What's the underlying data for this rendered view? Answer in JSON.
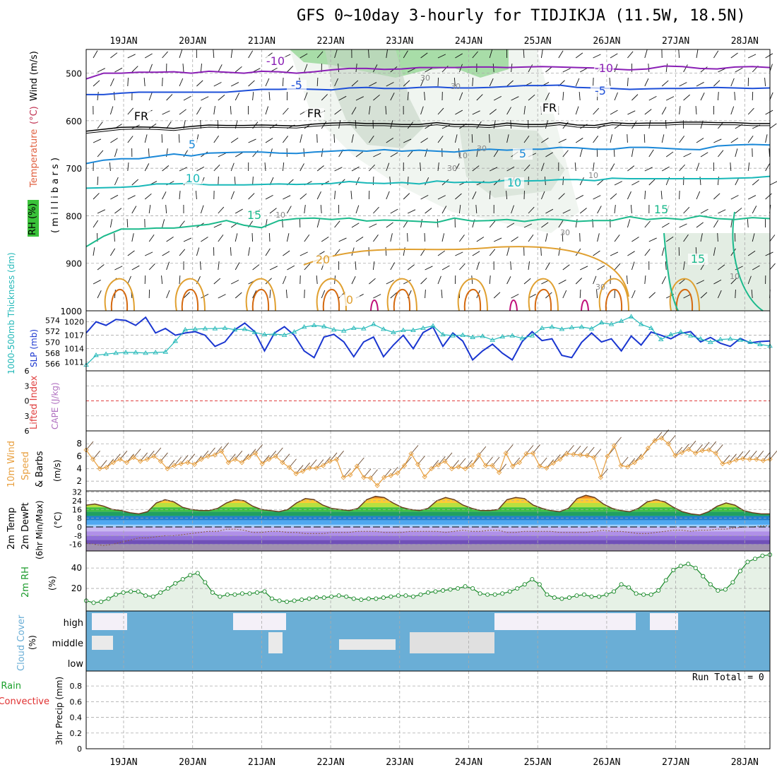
{
  "title": "GFS 0~10day 3-hourly for TIDJIKJA (11.5W, 18.5N)",
  "run_total_label": "Run Total = 0",
  "colors": {
    "purple": "#8a1fb5",
    "blue": "#1e4fd8",
    "lightblue": "#1a88d8",
    "cyan": "#18b8b8",
    "teal": "#1cba8c",
    "orange": "#e0a030",
    "darkorange": "#d56a10",
    "magenta": "#c0107a",
    "slp": "#1a36d0",
    "thickness": "#22b8b8",
    "wind10": "#e8a040",
    "cloud": "#6aaed6",
    "rh": "#1a9a2a",
    "grid": "#aaaaaa"
  },
  "chart_data": [
    {
      "panel": "upper-air",
      "type": "contour",
      "ylabel_parts": [
        "RH (%)",
        "Temperature (°C)",
        "Wind (m/s)"
      ],
      "ylabel_sub": "( m i l l i b a r s )",
      "x": [
        "19JAN",
        "20JAN",
        "21JAN",
        "22JAN",
        "23JAN",
        "24JAN",
        "25JAN",
        "26JAN",
        "27JAN",
        "28JAN"
      ],
      "yticks": [
        "500",
        "600",
        "700",
        "800",
        "900",
        "1000"
      ],
      "contour_labels": [
        "-10",
        "-10",
        "-5",
        "-5",
        "FR",
        "FR",
        "FR",
        "5",
        "5",
        "10",
        "10",
        "15",
        "15",
        "15",
        "20",
        "0"
      ],
      "rh_labels": [
        "30",
        "30",
        "10",
        "10",
        "10",
        "30",
        "30",
        "10",
        "30",
        "10"
      ],
      "series": [
        {
          "name": "-10",
          "level_mb": [
            512,
            500,
            500,
            498,
            498,
            497,
            500,
            496,
            498,
            500,
            496,
            497,
            500,
            497,
            493,
            490,
            490,
            492,
            491,
            488,
            488,
            488,
            487,
            487,
            488,
            487,
            486,
            487,
            488,
            489,
            491,
            493,
            491,
            485,
            486,
            490,
            491,
            487,
            486,
            488
          ]
        },
        {
          "name": "-5",
          "level_mb": [
            545,
            545,
            542,
            540,
            540,
            540,
            540,
            540,
            540,
            537,
            534,
            534,
            533,
            534,
            535,
            531,
            530,
            532,
            532,
            530,
            529,
            531,
            531,
            530,
            528,
            526,
            526,
            525,
            530,
            531,
            532,
            534,
            533,
            532,
            532,
            531,
            530,
            531,
            532,
            531
          ]
        },
        {
          "name": "FR",
          "level_mb": [
            622,
            618,
            614,
            613,
            614,
            616,
            612,
            609,
            610,
            610,
            609,
            610,
            611,
            607,
            605,
            604,
            606,
            606,
            608,
            608,
            604,
            608,
            608,
            610,
            605,
            608,
            608,
            604,
            609,
            610,
            604,
            606,
            605,
            605,
            603,
            603,
            604,
            604,
            606,
            606
          ]
        },
        {
          "name": "5",
          "level_mb": [
            690,
            683,
            680,
            680,
            675,
            670,
            674,
            668,
            667,
            666,
            666,
            668,
            669,
            666,
            664,
            662,
            664,
            661,
            664,
            662,
            664,
            666,
            662,
            660,
            662,
            660,
            660,
            656,
            657,
            660,
            660,
            656,
            656,
            658,
            660,
            661,
            653,
            651,
            650,
            651
          ]
        },
        {
          "name": "10",
          "level_mb": [
            742,
            741,
            740,
            738,
            733,
            733,
            732,
            735,
            735,
            735,
            734,
            733,
            734,
            733,
            732,
            728,
            731,
            732,
            730,
            733,
            727,
            730,
            729,
            730,
            725,
            727,
            726,
            724,
            724,
            726,
            721,
            722,
            722,
            722,
            722,
            722,
            722,
            721,
            720,
            717
          ]
        },
        {
          "name": "15",
          "level_mb": [
            865,
            843,
            828,
            828,
            826,
            826,
            822,
            818,
            810,
            820,
            825,
            810,
            806,
            805,
            808,
            805,
            811,
            809,
            810,
            812,
            814,
            805,
            811,
            810,
            808,
            812,
            807,
            808,
            812,
            810,
            810,
            802,
            808,
            805,
            808,
            800,
            806,
            808,
            804,
            806
          ]
        }
      ]
    },
    {
      "panel": "slp-thickness",
      "type": "line",
      "ylabel_left": "1000-500mb Thickness (dm)",
      "ylabel_right": "SLP (mb)",
      "yticks_left": [
        "574",
        "572",
        "570",
        "568",
        "566"
      ],
      "yticks_right": [
        "1020",
        "1017",
        "1014",
        "1011"
      ],
      "series": [
        {
          "name": "SLP",
          "unit": "mb",
          "values": [
            1017.5,
            1020,
            1019.2,
            1020.5,
            1020.3,
            1019.2,
            1021,
            1017.5,
            1018.5,
            1017,
            1017.5,
            1017.8,
            1017,
            1014.5,
            1015.5,
            1018.2,
            1019.7,
            1017.8,
            1013.5,
            1017.5,
            1018.9,
            1017,
            1013.5,
            1012,
            1016.6,
            1017.2,
            1015.5,
            1012.2,
            1015.5,
            1016.6,
            1012.2,
            1014.8,
            1017,
            1014,
            1017.6,
            1018.8,
            1014.5,
            1017.5,
            1015.7,
            1011.5,
            1013.5,
            1015,
            1013,
            1011.5,
            1015.6,
            1017.8,
            1015.8,
            1016.2,
            1012.5,
            1012,
            1015.4,
            1017.5,
            1015.5,
            1016.2,
            1013.5,
            1016.8,
            1014.8,
            1017.7,
            1017,
            1016.2,
            1017.4,
            1017.8,
            1015.5,
            1016.5,
            1015.2,
            1014.5,
            1016.3,
            1015.3,
            1015.6,
            1015.7
          ]
        },
        {
          "name": "Thickness",
          "unit": "dm",
          "values": [
            565.8,
            567.6,
            567.8,
            568,
            568.1,
            568.1,
            568,
            568.1,
            568.2,
            570.2,
            572.3,
            572.4,
            572.5,
            572.5,
            572.6,
            572.3,
            572.4,
            571.8,
            571.4,
            571.5,
            571.3,
            571.9,
            572.8,
            573.1,
            572.9,
            572.3,
            572.1,
            572.6,
            572.5,
            573.3,
            572.4,
            571.8,
            572.2,
            572.2,
            572.6,
            573.0,
            571.4,
            571.2,
            571.3,
            570.9,
            571.1,
            570.4,
            571.0,
            571.2,
            570.7,
            571.2,
            572.6,
            572.8,
            572.4,
            572.7,
            572.8,
            572.5,
            573.6,
            573.3,
            573.9,
            574.7,
            573.3,
            572.6,
            570.5,
            571.4,
            571.9,
            571.2,
            570.6,
            570.0,
            570.5,
            570.6,
            570.4,
            570.0,
            569.6,
            569.3
          ]
        }
      ]
    },
    {
      "panel": "lifted-index",
      "type": "line",
      "ylabel_left": "Lifted Index",
      "ylabel_right": "CAPE (J/kg)",
      "yticks": [
        "6",
        "3",
        "0",
        "3",
        "6"
      ]
    },
    {
      "panel": "wind10",
      "type": "line",
      "ylabel": "10m Wind Speed & Barbs",
      "unit": "(m/s)",
      "yticks": [
        "8",
        "6",
        "4",
        "2"
      ],
      "series": [
        {
          "name": "10m Wind Speed",
          "values": [
            7,
            5.5,
            4,
            4.2,
            5,
            5.5,
            5,
            5.8,
            5.2,
            5.5,
            6,
            5.2,
            4,
            4.5,
            4.8,
            5,
            4.7,
            5.5,
            6,
            6.2,
            6.8,
            5,
            5.5,
            5,
            5.8,
            6.5,
            4.8,
            5.5,
            6,
            5,
            4.2,
            3.2,
            3.6,
            4.1,
            4.1,
            4.5,
            5.2,
            5.5,
            2.6,
            3,
            4.4,
            2.6,
            2.5,
            1.3,
            2.6,
            2.9,
            3.3,
            4.5,
            6.4,
            4.7,
            2.7,
            4,
            4.6,
            5.2,
            4,
            4.3,
            4,
            4.5,
            6.2,
            4.5,
            4.5,
            3.4,
            6.5,
            4.4,
            5,
            6.4,
            6.5,
            4.4,
            4.1,
            4.9,
            5.5,
            6.4,
            6.3,
            6.2,
            6.1,
            5.8,
            2.6,
            6,
            7.7,
            4.5,
            4.3,
            5,
            5.8,
            7.3,
            8.5,
            8.9,
            8,
            6.1,
            6.6,
            7.1,
            6.5,
            6.9,
            7,
            6.5,
            4.8,
            5,
            5.4,
            5.6,
            5.5,
            5.5,
            5.3,
            5.5
          ]
        }
      ]
    },
    {
      "panel": "temp2m",
      "type": "area",
      "ylabel": "2m Temp 2m DewPt (6hr Min/Max)",
      "unit": "(°C)",
      "yticks": [
        "32",
        "24",
        "16",
        "8",
        "0",
        "-8",
        "-16"
      ],
      "series": [
        {
          "name": "2m Temp",
          "values": [
            20,
            21,
            19,
            16,
            15,
            13,
            12,
            14,
            22,
            25,
            23,
            18,
            16,
            15,
            15,
            17,
            22,
            25,
            24,
            19,
            16,
            15,
            14,
            16,
            22,
            26,
            25,
            20,
            17,
            16,
            15,
            17,
            25,
            28,
            27,
            22,
            18,
            16,
            15,
            17,
            24,
            27,
            25,
            20,
            17,
            15,
            15,
            16,
            25,
            27,
            26,
            20,
            17,
            15,
            14,
            17,
            26,
            29,
            27,
            21,
            17,
            15,
            14,
            17,
            23,
            25,
            23,
            18,
            14,
            12,
            11,
            14,
            19,
            22,
            20,
            15,
            13,
            12,
            12
          ]
        },
        {
          "name": "2m DewPt",
          "values": [
            -15,
            -16,
            -17,
            -16,
            -14,
            -12,
            -10,
            -10,
            -9,
            -8,
            -8,
            -7,
            -6,
            -5,
            -4,
            -4,
            -2,
            -2,
            -3,
            -5,
            -5,
            -4,
            -4,
            -5,
            -5,
            -6,
            -6,
            -6,
            -5,
            -5,
            -5,
            -4,
            -4,
            -4,
            -5,
            -5,
            -5,
            -4,
            -4,
            -4,
            -4,
            -5,
            -4,
            -3,
            -4,
            -4,
            -3,
            -3,
            -5,
            -5,
            -4,
            -4,
            -4,
            -4,
            -5,
            -5,
            -5,
            -5,
            -4,
            -3,
            -4,
            -4,
            -5,
            -6,
            -6,
            -5,
            -4,
            -3,
            -3,
            -4,
            -3,
            -3,
            -2,
            -2,
            -1,
            0,
            0,
            1,
            1
          ]
        }
      ]
    },
    {
      "panel": "rh2m",
      "type": "area",
      "ylabel": "2m RH",
      "unit": "(%)",
      "yticks": [
        "40",
        "20"
      ],
      "series": [
        {
          "name": "2m RH",
          "values": [
            8,
            6,
            7,
            10,
            14,
            16,
            17,
            17,
            13,
            12,
            16,
            20,
            25,
            29,
            33,
            35,
            26,
            16,
            12,
            14,
            14,
            15,
            15,
            16,
            17,
            10,
            8,
            7,
            8,
            9,
            10,
            11,
            11,
            12,
            13,
            12,
            10,
            9,
            10,
            10,
            11,
            12,
            13,
            13,
            12,
            14,
            16,
            17,
            18,
            19,
            20,
            22,
            20,
            15,
            14,
            14,
            15,
            17,
            20,
            24,
            29,
            24,
            14,
            11,
            10,
            11,
            13,
            14,
            12,
            12,
            14,
            17,
            24,
            21,
            15,
            14,
            14,
            18,
            28,
            38,
            42,
            44,
            40,
            32,
            24,
            18,
            19,
            26,
            37,
            46,
            49,
            52,
            53
          ]
        }
      ]
    },
    {
      "panel": "cloud",
      "type": "heatmap",
      "ylabel": "Cloud Cover",
      "unit": "(%)",
      "rows": [
        "high",
        "middle",
        "low"
      ]
    },
    {
      "panel": "precip",
      "type": "bar",
      "ylabel_left": "Total / Rain Convective",
      "ylabel": "3hr Precip (mm)",
      "yticks": [
        "0.8",
        "0.6",
        "0.4",
        "0.2",
        "0"
      ],
      "values": []
    }
  ],
  "x_labels": [
    "19JAN",
    "20JAN",
    "21JAN",
    "22JAN",
    "23JAN",
    "24JAN",
    "25JAN",
    "26JAN",
    "27JAN",
    "28JAN"
  ]
}
